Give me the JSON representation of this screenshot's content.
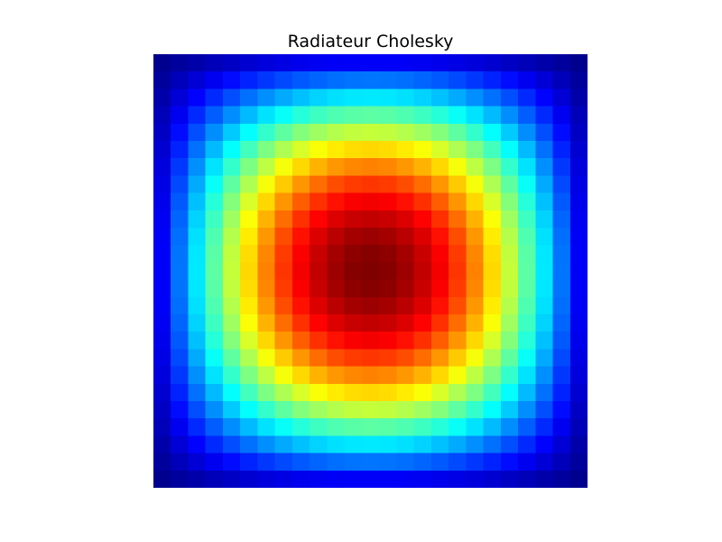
{
  "chart_data": {
    "type": "heatmap",
    "title": "Radiateur Cholesky",
    "xlabel": "",
    "ylabel": "",
    "grid": false,
    "axes_visible": false,
    "colormap": "jet",
    "vmin": 0,
    "vmax": 1,
    "rows": 25,
    "cols": 25,
    "peak_value": 1.0,
    "boundary_value": 0.0,
    "profile_values": [
      0.0,
      0.098,
      0.195,
      0.29,
      0.383,
      0.471,
      0.556,
      0.634,
      0.707,
      0.773,
      0.831,
      0.882,
      0.924,
      0.957,
      0.981,
      0.995,
      1.0
    ]
  }
}
